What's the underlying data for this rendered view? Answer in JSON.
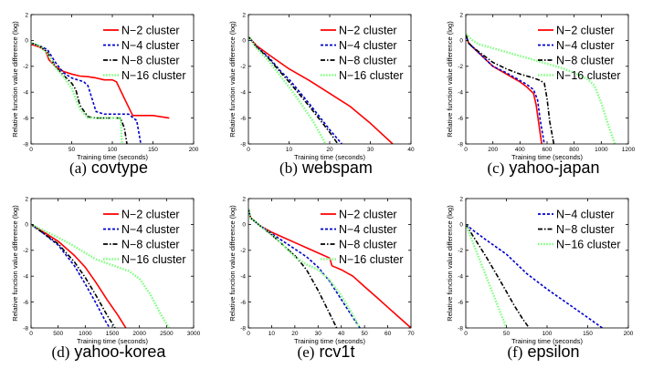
{
  "chart_data": [
    {
      "type": "line",
      "caption_tag": "(a)",
      "caption_name": "covtype",
      "xlabel": "Training time (seconds)",
      "ylabel": "Relative function value difference (log)",
      "xlim": [
        0,
        200
      ],
      "ylim": [
        -8,
        2
      ],
      "xticks": [
        0,
        50,
        100,
        150,
        200
      ],
      "yticks": [
        -8,
        -6,
        -4,
        -2,
        0,
        2
      ],
      "grid": false,
      "legend_position": "top-right",
      "series": [
        {
          "name": "N−2 cluster",
          "color": "#ff0000",
          "dash": "solid",
          "x": [
            0,
            10,
            18,
            22,
            30,
            40,
            50,
            60,
            70,
            80,
            90,
            100,
            105,
            115,
            125,
            150,
            170
          ],
          "y": [
            -0.3,
            -0.5,
            -0.8,
            -1.5,
            -2.0,
            -2.4,
            -2.6,
            -2.75,
            -2.8,
            -2.9,
            -3.05,
            -3.05,
            -3.2,
            -4.5,
            -5.8,
            -5.8,
            -6.0
          ]
        },
        {
          "name": "N−4 cluster",
          "color": "#0000cc",
          "dash": "dotted",
          "x": [
            0,
            10,
            20,
            30,
            40,
            50,
            60,
            65,
            70,
            80,
            90,
            100,
            110,
            120,
            130,
            135
          ],
          "y": [
            -0.2,
            -0.4,
            -0.7,
            -1.7,
            -2.5,
            -2.9,
            -3.1,
            -3.2,
            -3.5,
            -5.5,
            -5.7,
            -5.7,
            -5.7,
            -5.7,
            -6.2,
            -8
          ]
        },
        {
          "name": "N−8 cluster",
          "color": "#000000",
          "dash": "dashdot",
          "x": [
            0,
            10,
            20,
            30,
            40,
            50,
            55,
            60,
            70,
            80,
            90,
            100,
            110,
            115,
            118
          ],
          "y": [
            -0.2,
            -0.4,
            -0.9,
            -2.0,
            -2.7,
            -3.3,
            -3.8,
            -5.0,
            -5.9,
            -6.0,
            -6.0,
            -6.0,
            -6.0,
            -6.8,
            -8
          ]
        },
        {
          "name": "N−16 cluster",
          "color": "#7cff7c",
          "dash": "dotted-thick",
          "x": [
            0,
            10,
            20,
            30,
            40,
            50,
            55,
            60,
            70,
            80,
            90,
            100,
            110,
            112
          ],
          "y": [
            -0.2,
            -0.4,
            -1.0,
            -2.1,
            -2.8,
            -3.7,
            -4.5,
            -5.3,
            -6.0,
            -6.0,
            -6.0,
            -6.0,
            -6.0,
            -8
          ]
        }
      ]
    },
    {
      "type": "line",
      "caption_tag": "(b)",
      "caption_name": "webspam",
      "xlabel": "Training time (seconds)",
      "ylabel": "Relative function value difference (log)",
      "xlim": [
        0,
        40
      ],
      "ylim": [
        -8,
        2
      ],
      "xticks": [
        0,
        10,
        20,
        30,
        40
      ],
      "yticks": [
        -8,
        -6,
        -4,
        -2,
        0,
        2
      ],
      "grid": false,
      "legend_position": "top-right",
      "series": [
        {
          "name": "N−2 cluster",
          "color": "#ff0000",
          "dash": "solid",
          "x": [
            0,
            2,
            5,
            10,
            15,
            20,
            25,
            30,
            35.5
          ],
          "y": [
            0.3,
            -0.4,
            -1.1,
            -2.2,
            -3.1,
            -4.1,
            -5.1,
            -6.4,
            -8
          ]
        },
        {
          "name": "N−4 cluster",
          "color": "#0000cc",
          "dash": "dotted",
          "x": [
            0,
            2,
            5,
            8,
            10,
            15,
            20,
            23
          ],
          "y": [
            0.3,
            -0.5,
            -1.3,
            -2.4,
            -3.0,
            -4.9,
            -6.9,
            -8
          ]
        },
        {
          "name": "N−8 cluster",
          "color": "#000000",
          "dash": "dashdot",
          "x": [
            0,
            2,
            5,
            8,
            10,
            15,
            20,
            22
          ],
          "y": [
            0.3,
            -0.5,
            -1.4,
            -2.5,
            -3.2,
            -5.1,
            -7.1,
            -8
          ]
        },
        {
          "name": "N−16 cluster",
          "color": "#7cff7c",
          "dash": "dotted-thick",
          "x": [
            0,
            2,
            5,
            8,
            10,
            13,
            16,
            19
          ],
          "y": [
            0.3,
            -0.6,
            -1.6,
            -2.8,
            -3.6,
            -4.9,
            -6.3,
            -8
          ]
        }
      ]
    },
    {
      "type": "line",
      "caption_tag": "(c)",
      "caption_name": "yahoo-japan",
      "xlabel": "Training time (seconds)",
      "ylabel": "Relative function value difference (log)",
      "xlim": [
        0,
        1200
      ],
      "ylim": [
        -8,
        2
      ],
      "xticks": [
        0,
        200,
        400,
        600,
        800,
        1000,
        1200
      ],
      "yticks": [
        -8,
        -6,
        -4,
        -2,
        0,
        2
      ],
      "grid": false,
      "legend_position": "top-right",
      "series": [
        {
          "name": "N−2 cluster",
          "color": "#ff0000",
          "dash": "solid",
          "x": [
            0,
            20,
            50,
            100,
            200,
            300,
            400,
            450,
            500,
            520,
            540,
            560
          ],
          "y": [
            0.5,
            -0.2,
            -0.5,
            -1.0,
            -2.0,
            -2.6,
            -3.2,
            -3.6,
            -4.1,
            -5.0,
            -6.5,
            -8
          ]
        },
        {
          "name": "N−4 cluster",
          "color": "#0000cc",
          "dash": "dotted",
          "x": [
            0,
            20,
            50,
            100,
            200,
            300,
            400,
            450,
            500,
            530,
            550,
            580
          ],
          "y": [
            0.5,
            -0.2,
            -0.5,
            -1.0,
            -2.0,
            -2.5,
            -3.1,
            -3.4,
            -3.8,
            -4.6,
            -6.2,
            -8
          ]
        },
        {
          "name": "N−8 cluster",
          "color": "#000000",
          "dash": "dashdot",
          "x": [
            0,
            20,
            50,
            100,
            200,
            300,
            400,
            500,
            550,
            580,
            600,
            620,
            650
          ],
          "y": [
            0.5,
            -0.2,
            -0.5,
            -0.9,
            -1.7,
            -2.2,
            -2.6,
            -2.9,
            -3.1,
            -3.3,
            -4.5,
            -6.3,
            -8
          ]
        },
        {
          "name": "N−16 cluster",
          "color": "#7cff7c",
          "dash": "dotted-thick",
          "x": [
            0,
            50,
            100,
            200,
            300,
            400,
            500,
            600,
            700,
            800,
            900,
            950,
            1000,
            1050,
            1100
          ],
          "y": [
            0.5,
            0.0,
            -0.3,
            -0.6,
            -0.9,
            -1.2,
            -1.5,
            -1.8,
            -2.1,
            -2.5,
            -3.0,
            -3.5,
            -4.8,
            -6.5,
            -8
          ]
        }
      ]
    },
    {
      "type": "line",
      "caption_tag": "(d)",
      "caption_name": "yahoo-korea",
      "xlabel": "Training time (seconds)",
      "ylabel": "Relative function value difference (log)",
      "xlim": [
        0,
        3000
      ],
      "ylim": [
        -8,
        2
      ],
      "xticks": [
        0,
        500,
        1000,
        1500,
        2000,
        2500,
        3000
      ],
      "yticks": [
        -8,
        -6,
        -4,
        -2,
        0,
        2
      ],
      "grid": false,
      "legend_position": "top-right",
      "series": [
        {
          "name": "N−2 cluster",
          "color": "#ff0000",
          "dash": "solid",
          "x": [
            0,
            200,
            500,
            800,
            1000,
            1200,
            1400,
            1600,
            1750
          ],
          "y": [
            0.0,
            -0.5,
            -1.3,
            -2.4,
            -3.3,
            -4.5,
            -5.8,
            -7.0,
            -8
          ]
        },
        {
          "name": "N−4 cluster",
          "color": "#0000cc",
          "dash": "dotted",
          "x": [
            0,
            200,
            500,
            800,
            1000,
            1200,
            1350,
            1450
          ],
          "y": [
            0.0,
            -0.6,
            -1.6,
            -3.2,
            -4.6,
            -6.1,
            -7.3,
            -8
          ]
        },
        {
          "name": "N−8 cluster",
          "color": "#000000",
          "dash": "dashdot",
          "x": [
            0,
            200,
            500,
            800,
            1000,
            1200,
            1400,
            1550
          ],
          "y": [
            0.0,
            -0.6,
            -1.5,
            -2.9,
            -4.1,
            -5.5,
            -7.0,
            -8
          ]
        },
        {
          "name": "N−16 cluster",
          "color": "#7cff7c",
          "dash": "dotted-thick",
          "x": [
            0,
            200,
            500,
            800,
            1000,
            1200,
            1400,
            1600,
            1800,
            2000,
            2200,
            2400,
            2550
          ],
          "y": [
            0.0,
            -0.4,
            -1.0,
            -1.7,
            -2.2,
            -2.7,
            -3.0,
            -3.3,
            -3.6,
            -4.2,
            -5.4,
            -7.0,
            -8
          ]
        }
      ]
    },
    {
      "type": "line",
      "caption_tag": "(e)",
      "caption_name": "rcv1t",
      "xlabel": "Training time (seconds)",
      "ylabel": "Relative function value difference (log)",
      "xlim": [
        0,
        70
      ],
      "ylim": [
        -8,
        2
      ],
      "xticks": [
        0,
        10,
        20,
        30,
        40,
        50,
        60,
        70
      ],
      "yticks": [
        -8,
        -6,
        -4,
        -2,
        0,
        2
      ],
      "grid": false,
      "legend_position": "top-right",
      "series": [
        {
          "name": "N−2 cluster",
          "color": "#ff0000",
          "dash": "solid",
          "x": [
            0,
            1,
            5,
            10,
            15,
            20,
            25,
            30,
            35,
            36,
            40,
            45,
            50,
            55,
            60,
            65,
            70
          ],
          "y": [
            1.2,
            0.5,
            -0.1,
            -0.6,
            -1.0,
            -1.4,
            -1.8,
            -2.2,
            -2.6,
            -3.2,
            -3.5,
            -4.0,
            -4.8,
            -5.6,
            -6.4,
            -7.2,
            -8
          ]
        },
        {
          "name": "N−4 cluster",
          "color": "#0000cc",
          "dash": "dotted",
          "x": [
            0,
            1,
            5,
            10,
            15,
            20,
            25,
            30,
            35,
            40,
            45,
            48
          ],
          "y": [
            1.2,
            0.5,
            -0.1,
            -0.7,
            -1.3,
            -1.9,
            -2.5,
            -3.3,
            -4.4,
            -5.8,
            -7.2,
            -8
          ]
        },
        {
          "name": "N−8 cluster",
          "color": "#000000",
          "dash": "dashdot",
          "x": [
            0,
            1,
            5,
            10,
            15,
            20,
            25,
            30,
            35,
            38
          ],
          "y": [
            1.2,
            0.5,
            -0.1,
            -0.8,
            -1.6,
            -2.4,
            -3.5,
            -5.1,
            -6.9,
            -8
          ]
        },
        {
          "name": "N−16 cluster",
          "color": "#7cff7c",
          "dash": "dotted-thick",
          "x": [
            0,
            1,
            5,
            10,
            15,
            20,
            25,
            30,
            35,
            40,
            45,
            48
          ],
          "y": [
            1.2,
            0.5,
            -0.1,
            -0.8,
            -1.6,
            -2.5,
            -3.1,
            -3.5,
            -4.3,
            -5.5,
            -7.0,
            -8
          ]
        }
      ]
    },
    {
      "type": "line",
      "caption_tag": "(f)",
      "caption_name": "epsilon",
      "xlabel": "Training time (seconds)",
      "ylabel": "Relative function value difference (log)",
      "xlim": [
        0,
        200
      ],
      "ylim": [
        -8,
        2
      ],
      "xticks": [
        0,
        50,
        100,
        150,
        200
      ],
      "yticks": [
        -8,
        -6,
        -4,
        -2,
        0,
        2
      ],
      "grid": false,
      "legend_position": "top-right",
      "series": [
        {
          "name": "N−4 cluster",
          "color": "#0000cc",
          "dash": "dotted",
          "x": [
            0,
            10,
            25,
            50,
            75,
            100,
            125,
            150,
            168
          ],
          "y": [
            0.0,
            -0.5,
            -1.2,
            -2.3,
            -3.8,
            -5.0,
            -6.1,
            -7.2,
            -8
          ]
        },
        {
          "name": "N−8 cluster",
          "color": "#000000",
          "dash": "dashdot",
          "x": [
            0,
            10,
            25,
            40,
            50,
            60,
            70,
            78
          ],
          "y": [
            0.0,
            -1.0,
            -2.5,
            -4.1,
            -5.2,
            -6.3,
            -7.3,
            -8
          ]
        },
        {
          "name": "N−16 cluster",
          "color": "#7cff7c",
          "dash": "dotted-thick",
          "x": [
            0,
            10,
            20,
            30,
            40,
            50
          ],
          "y": [
            0.0,
            -1.6,
            -3.2,
            -4.8,
            -6.4,
            -8
          ]
        }
      ]
    }
  ]
}
